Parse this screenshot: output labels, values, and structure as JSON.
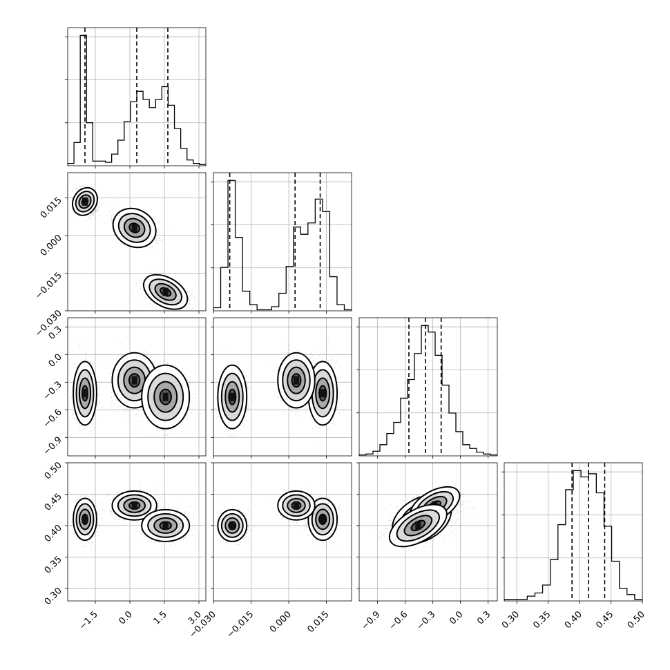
{
  "chart_data": {
    "type": "corner",
    "n_params": 4,
    "axes": [
      {
        "range": [
          -2.7,
          3.3
        ],
        "ticks": [
          -1.5,
          0.0,
          1.5,
          3.0
        ],
        "tick_labels": [
          "−1.5",
          "0.0",
          "1.5",
          "3.0"
        ]
      },
      {
        "range": [
          -0.03,
          0.025
        ],
        "ticks": [
          -0.03,
          -0.015,
          0.0,
          0.015
        ],
        "tick_labels": [
          "−0.030",
          "−0.015",
          "0.000",
          "0.015"
        ]
      },
      {
        "range": [
          -1.1,
          0.4
        ],
        "ticks": [
          -0.9,
          -0.6,
          -0.3,
          0.0,
          0.3
        ],
        "tick_labels": [
          "−0.9",
          "−0.6",
          "−0.3",
          "0.0",
          "0.3"
        ]
      },
      {
        "range": [
          0.28,
          0.5
        ],
        "ticks": [
          0.3,
          0.35,
          0.4,
          0.45,
          0.5
        ],
        "tick_labels": [
          "0.30",
          "0.35",
          "0.40",
          "0.45",
          "0.50"
        ]
      }
    ],
    "quantiles": [
      [
        -1.95,
        0.3,
        1.65
      ],
      [
        -0.0235,
        0.0025,
        0.0125
      ],
      [
        -0.56,
        -0.38,
        -0.21
      ],
      [
        0.388,
        0.414,
        0.44
      ]
    ],
    "histograms": [
      {
        "counts": [
          2,
          20,
          112,
          37,
          4,
          4,
          3,
          10,
          22,
          38,
          55,
          64,
          57,
          50,
          57,
          68,
          52,
          32,
          15,
          5,
          2,
          1
        ]
      },
      {
        "counts": [
          3,
          42,
          126,
          71,
          19,
          6,
          1,
          1,
          4,
          17,
          43,
          81,
          74,
          85,
          108,
          96,
          33,
          6,
          1
        ]
      },
      {
        "counts": [
          1,
          2,
          5,
          12,
          24,
          36,
          62,
          82,
          110,
          140,
          133,
          108,
          76,
          46,
          26,
          12,
          8,
          4,
          2,
          1
        ]
      },
      {
        "counts": [
          1,
          1,
          1,
          3,
          5,
          10,
          26,
          48,
          70,
          82,
          78,
          80,
          68,
          47,
          25,
          8,
          4,
          1
        ]
      }
    ],
    "clusters": [
      {
        "weight": 0.33,
        "mean": [
          -1.95,
          0.0135,
          -0.42,
          0.41
        ],
        "sd": [
          0.22,
          0.0025,
          0.15,
          0.0145
        ],
        "rho23": 0.15
      },
      {
        "weight": 0.35,
        "mean": [
          0.2,
          0.003,
          -0.28,
          0.432
        ],
        "sd": [
          0.42,
          0.0032,
          0.13,
          0.01
        ],
        "rho23": 0.35
      },
      {
        "weight": 0.32,
        "mean": [
          1.55,
          -0.0225,
          -0.46,
          0.4
        ],
        "sd": [
          0.45,
          0.0025,
          0.15,
          0.011
        ],
        "rho23": 0.45
      }
    ],
    "grid": true
  }
}
